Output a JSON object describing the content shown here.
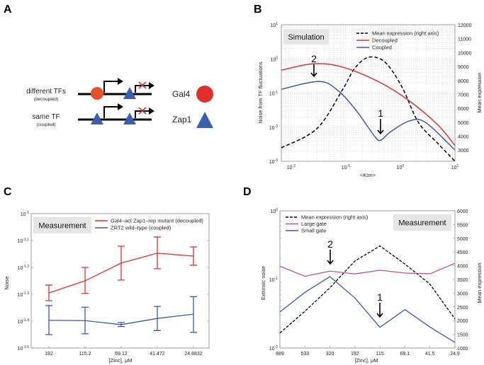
{
  "panel_labels": [
    "A",
    "B",
    "C",
    "D"
  ],
  "panel_a": {
    "rows": [
      {
        "label": "different TFs",
        "sublabel": "(decoupled)"
      },
      {
        "label": "same TF",
        "sublabel": "(coupled)"
      }
    ],
    "legend": [
      {
        "label": "Gal4",
        "shape": "circle",
        "color": "#e0302a"
      },
      {
        "label": "Zap1",
        "shape": "triangle",
        "color": "#3a5fb0"
      }
    ]
  },
  "chart_data": [
    {
      "id": "B",
      "type": "line",
      "box_label": "Simulation",
      "xlabel": "<Kon>",
      "ylabel": "Noise from TF fluctuations",
      "ylabel_right": "Mean expression",
      "xscale": "log",
      "yscale": "log",
      "xlim_log10": [
        -2.18,
        1
      ],
      "ylim_log10": [
        -3,
        1
      ],
      "ylim_right": [
        2200,
        12000
      ],
      "grid": true,
      "legend_position": "top-right",
      "x_ticks": [
        {
          "base": "10",
          "exp": "-2"
        },
        {
          "base": "10",
          "exp": "-1"
        },
        {
          "base": "10",
          "exp": "0"
        },
        {
          "base": "10",
          "exp": "1"
        }
      ],
      "x_tick_values_log10": [
        -2,
        -1,
        0,
        1
      ],
      "y_ticks": [
        {
          "base": "10",
          "exp": "-3"
        },
        {
          "base": "10",
          "exp": "-2"
        },
        {
          "base": "10",
          "exp": "-1"
        },
        {
          "base": "10",
          "exp": "0"
        },
        {
          "base": "10",
          "exp": "1"
        }
      ],
      "y_tick_values_log10": [
        -3,
        -2,
        -1,
        0,
        1
      ],
      "y_right_ticks": [
        "3000",
        "4000",
        "5000",
        "6000",
        "7000",
        "8000",
        "9000",
        "10000",
        "11000",
        "12000"
      ],
      "series": [
        {
          "name": "Mean expression (right axis)",
          "color": "#000000",
          "dash": true,
          "axis": "right",
          "x_log10": [
            -2.18,
            -1.53,
            -1.06,
            -0.84,
            -0.58,
            -0.28,
            0.03,
            0.33,
            0.69,
            1.0
          ],
          "y": [
            3170,
            4540,
            7330,
            8850,
            9670,
            9310,
            7530,
            5000,
            3470,
            2200
          ]
        },
        {
          "name": "Decoupled",
          "color": "#e0302a",
          "axis": "left",
          "x_log10": [
            -2.18,
            -1.58,
            -1.06,
            -0.41,
            0.14,
            0.69,
            1.0
          ],
          "y_log10": [
            -0.33,
            -0.14,
            -0.24,
            -0.66,
            -1.2,
            -1.94,
            -2.54
          ]
        },
        {
          "name": "Coupled",
          "color": "#3a5aa8",
          "axis": "left",
          "x_log10": [
            -2.18,
            -1.49,
            -1.14,
            -0.8,
            -0.47,
            -0.36,
            -0.19,
            0.16,
            0.46,
            1.0
          ],
          "y_log10": [
            -0.89,
            -0.66,
            -0.93,
            -1.53,
            -2.27,
            -2.38,
            -2.15,
            -1.82,
            -1.86,
            -2.67
          ]
        }
      ],
      "annotations": [
        {
          "text": "2",
          "x_log10": -1.58
        },
        {
          "text": "1",
          "x_log10": -0.38
        }
      ]
    },
    {
      "id": "C",
      "type": "line",
      "box_label": "Measurement",
      "xlabel": "[Zinc], μM",
      "ylabel": "Noise",
      "yscale": "log",
      "ylim_log10": [
        -1.5,
        -1
      ],
      "grid": false,
      "legend_position": "top-right",
      "categories": [
        "192",
        "115.2",
        "69.12",
        "41.472",
        "24.8832"
      ],
      "y_ticks": [
        {
          "base": "10",
          "exp": "-1.5"
        },
        {
          "base": "10",
          "exp": "-1.4"
        },
        {
          "base": "10",
          "exp": "-1.3"
        },
        {
          "base": "10",
          "exp": "-1.2"
        },
        {
          "base": "10",
          "exp": "-1.1"
        },
        {
          "base": "10",
          "exp": "-1"
        }
      ],
      "y_tick_values_log10": [
        -1.5,
        -1.4,
        -1.3,
        -1.2,
        -1.1,
        -1
      ],
      "series": [
        {
          "name": "Gal4–act Zap1–rep mutant (decoupled)",
          "color": "#e0302a",
          "y_log10": [
            -1.295,
            -1.25,
            -1.184,
            -1.147,
            -1.158
          ],
          "err_high_log10": [
            -1.266,
            -1.2,
            -1.121,
            -1.087,
            -1.124
          ],
          "err_low_log10": [
            -1.324,
            -1.297,
            -1.247,
            -1.205,
            -1.192
          ]
        },
        {
          "name": "ZRT2 wild–type (coupled)",
          "color": "#3a5aa8",
          "y_log10": [
            -1.397,
            -1.398,
            -1.413,
            -1.39,
            -1.374
          ],
          "err_high_log10": [
            -1.342,
            -1.348,
            -1.405,
            -1.345,
            -1.309
          ],
          "err_low_log10": [
            -1.45,
            -1.447,
            -1.42,
            -1.435,
            -1.442
          ]
        }
      ]
    },
    {
      "id": "D",
      "type": "line",
      "box_label": "Measurement",
      "xlabel": "[Zinc], μM",
      "ylabel": "Extrinsic noise",
      "ylabel_right": "Mean expression",
      "yscale": "log",
      "ylim_log10": [
        -2,
        0
      ],
      "ylim_right": [
        1000,
        6000
      ],
      "grid": false,
      "legend_position": "top-left",
      "categories": [
        "889",
        "533",
        "320",
        "192",
        "115",
        "69.1",
        "41.5",
        "24.9"
      ],
      "y_ticks": [
        {
          "base": "10",
          "exp": "-2"
        },
        {
          "base": "10",
          "exp": "-1"
        },
        {
          "base": "10",
          "exp": "0"
        }
      ],
      "y_tick_values_log10": [
        -2,
        -1,
        0
      ],
      "y_right_ticks": [
        "1000",
        "1500",
        "2000",
        "2500",
        "3000",
        "3500",
        "4000",
        "4500",
        "5000",
        "5500",
        "6000"
      ],
      "series": [
        {
          "name": "Mean expression (right axis)",
          "color": "#000000",
          "dash": true,
          "axis": "right",
          "y": [
            1549,
            2340,
            3198,
            4170,
            4719,
            4059,
            3327,
            2057
          ]
        },
        {
          "name": "Large gate",
          "color": "#b8509e",
          "axis": "left",
          "y_log10": [
            -0.807,
            -0.955,
            -0.879,
            -0.92,
            -0.866,
            -0.907,
            -0.918,
            -0.766
          ]
        },
        {
          "name": "Small gate",
          "color": "#3a5aa8",
          "axis": "left",
          "y_log10": [
            -1.474,
            -1.189,
            -0.959,
            -1.271,
            -1.698,
            -1.44,
            -1.694,
            -1.918
          ]
        }
      ],
      "annotations": [
        {
          "text": "2",
          "category": "320"
        },
        {
          "text": "1",
          "category": "115"
        }
      ]
    }
  ]
}
